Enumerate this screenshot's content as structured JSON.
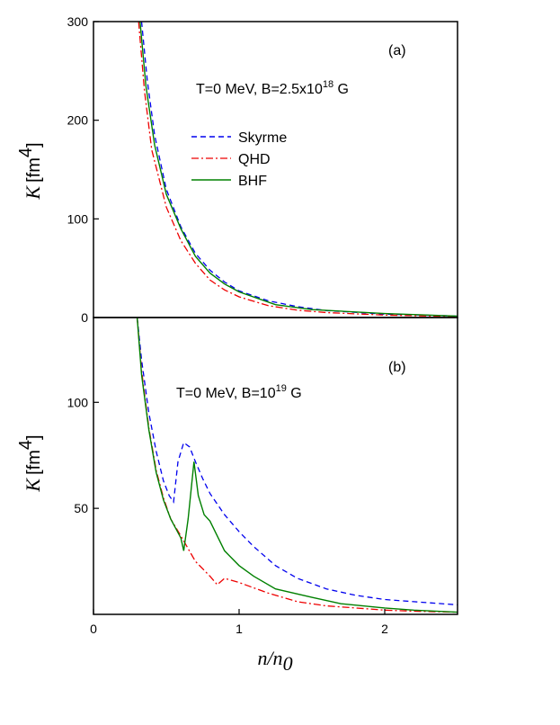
{
  "chart_data": [
    {
      "type": "line",
      "panel_label": "(a)",
      "annotation": {
        "prefix": "T=0 MeV, B=2.5x10",
        "sup": "18",
        "suffix": " G"
      },
      "ylabel": {
        "italic": "K",
        "unit": "[fm",
        "sup": "4",
        "close": "]"
      },
      "xlim": [
        0,
        2.5
      ],
      "ylim": [
        0,
        300
      ],
      "yticks": [
        0,
        100,
        200,
        300
      ],
      "legend": {
        "placement": "center",
        "entries": [
          "Skyrme",
          "QHD",
          "BHF"
        ]
      },
      "series": [
        {
          "name": "Skyrme",
          "color": "#0000ee",
          "dash": "dash",
          "x": [
            0.33,
            0.37,
            0.42,
            0.5,
            0.6,
            0.7,
            0.8,
            0.9,
            1.0,
            1.2,
            1.4,
            1.6,
            2.0,
            2.5
          ],
          "y": [
            300,
            240,
            185,
            130,
            92,
            65,
            48,
            36,
            27,
            17,
            11,
            7,
            3.5,
            1.5
          ]
        },
        {
          "name": "QHD",
          "color": "#ee0000",
          "dash": "dashdot",
          "x": [
            0.31,
            0.35,
            0.4,
            0.5,
            0.6,
            0.7,
            0.8,
            0.9,
            1.0,
            1.2,
            1.4,
            1.6,
            2.0,
            2.5
          ],
          "y": [
            300,
            230,
            170,
            112,
            78,
            55,
            38,
            28,
            21,
            12,
            7.5,
            5,
            2.5,
            1
          ]
        },
        {
          "name": "BHF",
          "color": "#008000",
          "dash": "solid",
          "x": [
            0.32,
            0.36,
            0.42,
            0.5,
            0.6,
            0.7,
            0.8,
            0.9,
            1.0,
            1.25,
            1.5,
            2.0,
            2.5
          ],
          "y": [
            300,
            235,
            175,
            125,
            90,
            62,
            45,
            34,
            26,
            13,
            8,
            4,
            1.5
          ]
        }
      ]
    },
    {
      "type": "line",
      "panel_label": "(b)",
      "annotation": {
        "prefix": "T=0 MeV, B=10",
        "sup": "19",
        "suffix": " G"
      },
      "ylabel": {
        "italic": "K",
        "unit": "[fm",
        "sup": "4",
        "close": "]"
      },
      "xlabel": {
        "n": "n",
        "slash": "/n",
        "sub": "0"
      },
      "xlim": [
        0,
        2.5
      ],
      "ylim": [
        0,
        140
      ],
      "yticks": [
        50,
        100
      ],
      "xticks": [
        0,
        1,
        2
      ],
      "series": [
        {
          "name": "Skyrme",
          "color": "#0000ee",
          "dash": "dash",
          "x": [
            0.3,
            0.33,
            0.38,
            0.43,
            0.48,
            0.52,
            0.55,
            0.58,
            0.62,
            0.66,
            0.7,
            0.75,
            0.8,
            0.9,
            1.0,
            1.1,
            1.25,
            1.4,
            1.6,
            1.8,
            2.0,
            2.2,
            2.5
          ],
          "y": [
            140,
            120,
            95,
            77,
            63,
            56,
            53,
            72,
            81,
            79,
            72,
            64,
            57,
            47,
            39,
            32,
            23,
            17,
            12,
            9,
            7,
            6,
            4.5
          ]
        },
        {
          "name": "QHD",
          "color": "#ee0000",
          "dash": "dashdot",
          "x": [
            0.3,
            0.33,
            0.38,
            0.43,
            0.48,
            0.53,
            0.6,
            0.7,
            0.8,
            0.85,
            0.9,
            0.95,
            1.0,
            1.2,
            1.4,
            1.6,
            1.8,
            2.0,
            2.2,
            2.5
          ],
          "y": [
            140,
            115,
            88,
            68,
            55,
            45,
            37,
            25,
            18,
            14,
            17,
            16,
            15,
            10,
            6,
            4,
            3,
            2,
            1.5,
            1
          ]
        },
        {
          "name": "BHF",
          "color": "#008000",
          "dash": "solid",
          "x": [
            0.3,
            0.33,
            0.38,
            0.43,
            0.48,
            0.53,
            0.6,
            0.62,
            0.65,
            0.69,
            0.72,
            0.76,
            0.8,
            0.9,
            1.0,
            1.1,
            1.25,
            1.5,
            1.7,
            2.0,
            2.2,
            2.5
          ],
          "y": [
            140,
            113,
            87,
            67,
            54,
            45,
            36,
            30,
            45,
            72,
            56,
            47,
            44,
            30,
            23,
            18,
            12,
            8,
            5,
            3,
            2,
            1
          ]
        }
      ]
    }
  ]
}
